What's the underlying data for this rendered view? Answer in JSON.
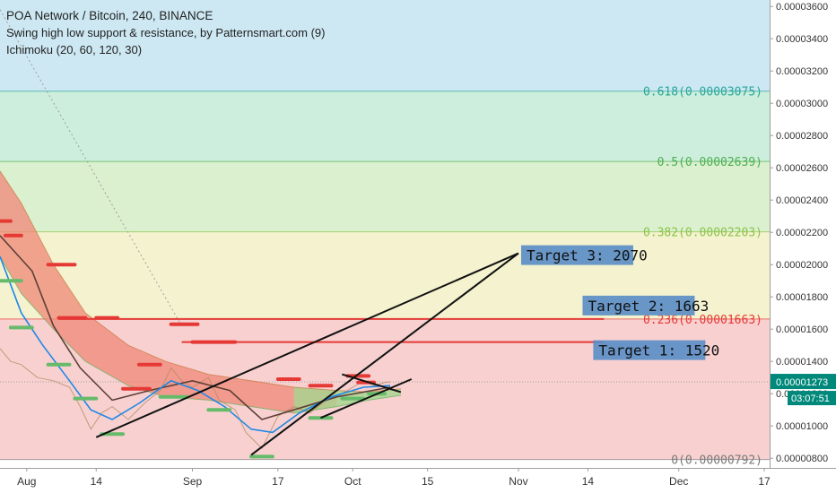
{
  "header": {
    "title": "POA Network / Bitcoin, 240, BINANCE",
    "indicator_1": "Swing high low support & resistance, by Patternsmart.com (9)",
    "indicator_2": "Ichimoku (20, 60, 120, 30)"
  },
  "chart_data": {
    "type": "line",
    "title": "POA Network / Bitcoin, 240, BINANCE",
    "xlabel": "",
    "ylabel": "",
    "ylim": [
      7.4e-06,
      3.64e-05
    ],
    "xlim": [
      "2018-07-27",
      "2018-12-18"
    ],
    "y_ticks": [
      "0.00003600",
      "0.00003400",
      "0.00003200",
      "0.00003000",
      "0.00002800",
      "0.00002600",
      "0.00002400",
      "0.00002200",
      "0.00002000",
      "0.00001800",
      "0.00001600",
      "0.00001400",
      "0.00001200",
      "0.00001000",
      "0.00000800"
    ],
    "x_ticks": [
      {
        "date": "2018-08-01",
        "label": "Aug"
      },
      {
        "date": "2018-08-14",
        "label": "14"
      },
      {
        "date": "2018-09-01",
        "label": "Sep"
      },
      {
        "date": "2018-09-17",
        "label": "17"
      },
      {
        "date": "2018-10-01",
        "label": "Oct"
      },
      {
        "date": "2018-10-15",
        "label": "15"
      },
      {
        "date": "2018-11-01",
        "label": "Nov"
      },
      {
        "date": "2018-11-14",
        "label": "14"
      },
      {
        "date": "2018-12-01",
        "label": "Dec"
      },
      {
        "date": "2018-12-17",
        "label": "17"
      }
    ],
    "fibonacci_levels": [
      {
        "ratio": "0",
        "price": 7.92e-06,
        "label": "0(0.00000792)",
        "color": "#787878"
      },
      {
        "ratio": "0.236",
        "price": 1.663e-05,
        "label": "0.236(0.00001663)",
        "color": "#e53935"
      },
      {
        "ratio": "0.382",
        "price": 2.203e-05,
        "label": "0.382(0.00002203)",
        "color": "#8bc34a"
      },
      {
        "ratio": "0.5",
        "price": 2.639e-05,
        "label": "0.5(0.00002639)",
        "color": "#4caf50"
      },
      {
        "ratio": "0.618",
        "price": 3.075e-05,
        "label": "0.618(0.00003075)",
        "color": "#26a69a"
      }
    ],
    "fib_zones": [
      {
        "from": 7.92e-06,
        "to": 1.663e-05,
        "color": "#f8d0d0"
      },
      {
        "from": 1.663e-05,
        "to": 2.203e-05,
        "color": "#f5f3cf"
      },
      {
        "from": 2.203e-05,
        "to": 2.639e-05,
        "color": "#dbf0cf"
      },
      {
        "from": 2.639e-05,
        "to": 3.075e-05,
        "color": "#cdeedd"
      },
      {
        "from": 3.075e-05,
        "to": 3.64e-05,
        "color": "#cde8f3"
      }
    ],
    "targets": [
      {
        "label": "Target 1: 1520",
        "price": 1.52e-05
      },
      {
        "label": "Target 2: 1663",
        "price": 1.663e-05
      },
      {
        "label": "Target 3: 2070",
        "price": 2.07e-05
      }
    ],
    "last_price": "0.00001273",
    "countdown": "03:07:51",
    "price_series": [
      {
        "date": "2018-07-27",
        "value": 1.48e-05
      },
      {
        "date": "2018-07-29",
        "value": 1.4e-05
      },
      {
        "date": "2018-07-31",
        "value": 1.38e-05
      },
      {
        "date": "2018-08-03",
        "value": 1.3e-05
      },
      {
        "date": "2018-08-06",
        "value": 1.28e-05
      },
      {
        "date": "2018-08-09",
        "value": 1.24e-05
      },
      {
        "date": "2018-08-11",
        "value": 1.12e-05
      },
      {
        "date": "2018-08-13",
        "value": 9.8e-06
      },
      {
        "date": "2018-08-15",
        "value": 1.08e-05
      },
      {
        "date": "2018-08-17",
        "value": 1.12e-05
      },
      {
        "date": "2018-08-20",
        "value": 1.04e-05
      },
      {
        "date": "2018-08-23",
        "value": 1.14e-05
      },
      {
        "date": "2018-08-26",
        "value": 1.22e-05
      },
      {
        "date": "2018-08-28",
        "value": 1.36e-05
      },
      {
        "date": "2018-08-30",
        "value": 1.28e-05
      },
      {
        "date": "2018-09-01",
        "value": 1.24e-05
      },
      {
        "date": "2018-09-04",
        "value": 1.3e-05
      },
      {
        "date": "2018-09-06",
        "value": 1.16e-05
      },
      {
        "date": "2018-09-09",
        "value": 1.1e-05
      },
      {
        "date": "2018-09-11",
        "value": 9.6e-06
      },
      {
        "date": "2018-09-14",
        "value": 8.6e-06
      },
      {
        "date": "2018-09-17",
        "value": 1.06e-05
      },
      {
        "date": "2018-09-20",
        "value": 1.12e-05
      },
      {
        "date": "2018-09-23",
        "value": 1.08e-05
      },
      {
        "date": "2018-09-26",
        "value": 1.16e-05
      },
      {
        "date": "2018-09-29",
        "value": 1.2e-05
      },
      {
        "date": "2018-10-01",
        "value": 1.24e-05
      },
      {
        "date": "2018-10-03",
        "value": 1.28e-05
      },
      {
        "date": "2018-10-05",
        "value": 1.25e-05
      },
      {
        "date": "2018-10-07",
        "value": 1.27e-05
      },
      {
        "date": "2018-10-08",
        "value": 1.273e-05
      }
    ],
    "tenkan_line": [
      {
        "date": "2018-07-27",
        "value": 2.05e-05
      },
      {
        "date": "2018-07-31",
        "value": 1.7e-05
      },
      {
        "date": "2018-08-04",
        "value": 1.5e-05
      },
      {
        "date": "2018-08-09",
        "value": 1.28e-05
      },
      {
        "date": "2018-08-13",
        "value": 1.1e-05
      },
      {
        "date": "2018-08-17",
        "value": 1.04e-05
      },
      {
        "date": "2018-08-22",
        "value": 1.14e-05
      },
      {
        "date": "2018-08-28",
        "value": 1.28e-05
      },
      {
        "date": "2018-09-02",
        "value": 1.22e-05
      },
      {
        "date": "2018-09-07",
        "value": 1.12e-05
      },
      {
        "date": "2018-09-12",
        "value": 9.8e-06
      },
      {
        "date": "2018-09-16",
        "value": 9.6e-06
      },
      {
        "date": "2018-09-21",
        "value": 1.08e-05
      },
      {
        "date": "2018-09-27",
        "value": 1.18e-05
      },
      {
        "date": "2018-10-03",
        "value": 1.24e-05
      },
      {
        "date": "2018-10-08",
        "value": 1.25e-05
      }
    ],
    "kijun_line": [
      {
        "date": "2018-07-27",
        "value": 2.18e-05
      },
      {
        "date": "2018-08-02",
        "value": 1.96e-05
      },
      {
        "date": "2018-08-06",
        "value": 1.62e-05
      },
      {
        "date": "2018-08-11",
        "value": 1.36e-05
      },
      {
        "date": "2018-08-17",
        "value": 1.16e-05
      },
      {
        "date": "2018-08-24",
        "value": 1.22e-05
      },
      {
        "date": "2018-09-01",
        "value": 1.28e-05
      },
      {
        "date": "2018-09-08",
        "value": 1.22e-05
      },
      {
        "date": "2018-09-14",
        "value": 1.04e-05
      },
      {
        "date": "2018-09-20",
        "value": 1.1e-05
      },
      {
        "date": "2018-09-28",
        "value": 1.18e-05
      },
      {
        "date": "2018-10-08",
        "value": 1.24e-05
      }
    ],
    "cloud": {
      "bearish_color": "#f08a7a",
      "bullish_color": "#a5d68f",
      "upper": [
        {
          "date": "2018-07-27",
          "value": 2.58e-05
        },
        {
          "date": "2018-07-31",
          "value": 2.38e-05
        },
        {
          "date": "2018-08-06",
          "value": 2e-05
        },
        {
          "date": "2018-08-12",
          "value": 1.7e-05
        },
        {
          "date": "2018-08-20",
          "value": 1.5e-05
        },
        {
          "date": "2018-08-27",
          "value": 1.4e-05
        },
        {
          "date": "2018-09-04",
          "value": 1.32e-05
        },
        {
          "date": "2018-09-12",
          "value": 1.28e-05
        },
        {
          "date": "2018-09-20",
          "value": 1.24e-05
        },
        {
          "date": "2018-09-28",
          "value": 1.22e-05
        },
        {
          "date": "2018-10-04",
          "value": 1.21e-05
        },
        {
          "date": "2018-10-10",
          "value": 1.23e-05
        }
      ],
      "lower": [
        {
          "date": "2018-07-27",
          "value": 2.05e-05
        },
        {
          "date": "2018-07-31",
          "value": 1.82e-05
        },
        {
          "date": "2018-08-06",
          "value": 1.6e-05
        },
        {
          "date": "2018-08-12",
          "value": 1.4e-05
        },
        {
          "date": "2018-08-20",
          "value": 1.25e-05
        },
        {
          "date": "2018-08-27",
          "value": 1.18e-05
        },
        {
          "date": "2018-09-04",
          "value": 1.16e-05
        },
        {
          "date": "2018-09-12",
          "value": 1.12e-05
        },
        {
          "date": "2018-09-20",
          "value": 1.08e-05
        },
        {
          "date": "2018-09-28",
          "value": 1.12e-05
        },
        {
          "date": "2018-10-04",
          "value": 1.16e-05
        },
        {
          "date": "2018-10-10",
          "value": 1.19e-05
        }
      ],
      "bullish_from": "2018-09-22"
    },
    "trend_lines": [
      {
        "from": {
          "date": "2018-08-14",
          "value": 9.3e-06
        },
        "to": {
          "date": "2018-11-01",
          "value": 2.07e-05
        }
      },
      {
        "from": {
          "date": "2018-09-12",
          "value": 8.2e-06
        },
        "to": {
          "date": "2018-11-01",
          "value": 2.07e-05
        }
      },
      {
        "from": {
          "date": "2018-09-25",
          "value": 1.05e-05
        },
        "to": {
          "date": "2018-10-12",
          "value": 1.29e-05
        }
      },
      {
        "from": {
          "date": "2018-09-29",
          "value": 1.32e-05
        },
        "to": {
          "date": "2018-10-10",
          "value": 1.21e-05
        }
      }
    ],
    "resistance_segments": [
      {
        "from": "2018-07-27",
        "to": "2018-07-29",
        "value": 2.27e-05
      },
      {
        "from": "2018-07-28",
        "to": "2018-07-31",
        "value": 2.18e-05
      },
      {
        "from": "2018-08-05",
        "to": "2018-08-10",
        "value": 2e-05
      },
      {
        "from": "2018-08-07",
        "to": "2018-08-12",
        "value": 1.67e-05
      },
      {
        "from": "2018-08-14",
        "to": "2018-08-18",
        "value": 1.67e-05
      },
      {
        "from": "2018-08-28",
        "to": "2018-09-02",
        "value": 1.63e-05
      },
      {
        "from": "2018-08-22",
        "to": "2018-08-26",
        "value": 1.38e-05
      },
      {
        "from": "2018-08-19",
        "to": "2018-08-24",
        "value": 1.23e-05
      },
      {
        "from": "2018-09-01",
        "to": "2018-09-09",
        "value": 1.52e-05
      },
      {
        "from": "2018-09-17",
        "to": "2018-09-21",
        "value": 1.29e-05
      },
      {
        "from": "2018-09-23",
        "to": "2018-09-27",
        "value": 1.25e-05
      },
      {
        "from": "2018-09-30",
        "to": "2018-10-04",
        "value": 1.31e-05
      },
      {
        "from": "2018-10-02",
        "to": "2018-10-05",
        "value": 1.27e-05
      }
    ],
    "support_segments": [
      {
        "from": "2018-07-27",
        "to": "2018-07-31",
        "value": 1.9e-05
      },
      {
        "from": "2018-07-29",
        "to": "2018-08-02",
        "value": 1.61e-05
      },
      {
        "from": "2018-08-05",
        "to": "2018-08-09",
        "value": 1.38e-05
      },
      {
        "from": "2018-08-10",
        "to": "2018-08-14",
        "value": 1.17e-05
      },
      {
        "from": "2018-08-15",
        "to": "2018-08-19",
        "value": 9.5e-06
      },
      {
        "from": "2018-08-26",
        "to": "2018-08-31",
        "value": 1.18e-05
      },
      {
        "from": "2018-09-04",
        "to": "2018-09-08",
        "value": 1.1e-05
      },
      {
        "from": "2018-09-12",
        "to": "2018-09-16",
        "value": 8.1e-06
      },
      {
        "from": "2018-09-23",
        "to": "2018-09-27",
        "value": 1.05e-05
      },
      {
        "from": "2018-09-29",
        "to": "2018-10-03",
        "value": 1.17e-05
      },
      {
        "from": "2018-10-04",
        "to": "2018-10-07",
        "value": 1.2e-05
      }
    ]
  }
}
